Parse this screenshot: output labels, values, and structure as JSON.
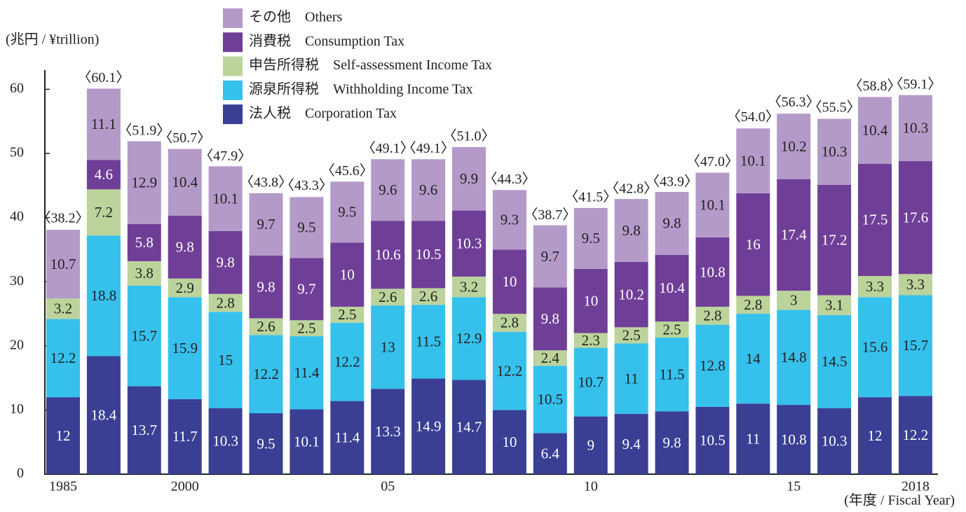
{
  "chart_data": {
    "type": "stacked-bar",
    "y_label": "(兆円 / ¥trillion)",
    "x_label": "(年度 / Fiscal Year)",
    "categories": [
      "1985",
      null,
      null,
      "2000",
      null,
      null,
      null,
      null,
      "05",
      null,
      null,
      null,
      null,
      "10",
      null,
      null,
      null,
      null,
      "15",
      null,
      null,
      "2018"
    ],
    "series": [
      {
        "name": "法人税　Corporation Tax",
        "color": "#3a3f94",
        "values": [
          12.0,
          18.4,
          13.7,
          11.7,
          10.3,
          9.5,
          10.1,
          11.4,
          13.3,
          14.9,
          14.7,
          10.0,
          6.4,
          9.0,
          9.4,
          9.8,
          10.5,
          11.0,
          10.8,
          10.3,
          12.0,
          12.2
        ]
      },
      {
        "name": "源泉所得税　Withholding Income Tax",
        "color": "#36c0ec",
        "values": [
          12.2,
          18.8,
          15.7,
          15.9,
          15.0,
          12.2,
          11.4,
          12.2,
          13.0,
          11.5,
          12.9,
          12.2,
          10.5,
          10.7,
          11.0,
          11.5,
          12.8,
          14.0,
          14.8,
          14.5,
          15.6,
          15.7
        ]
      },
      {
        "name": "申告所得税　Self-assessment Income Tax",
        "color": "#bcd39b",
        "values": [
          3.2,
          7.2,
          3.8,
          2.9,
          2.8,
          2.6,
          2.5,
          2.5,
          2.6,
          2.6,
          3.2,
          2.8,
          2.4,
          2.3,
          2.5,
          2.5,
          2.8,
          2.8,
          3.0,
          3.1,
          3.3,
          3.3
        ]
      },
      {
        "name": "消費税　Consumption Tax",
        "color": "#6f3f98",
        "values": [
          null,
          4.6,
          5.8,
          9.8,
          9.8,
          9.8,
          9.7,
          10.0,
          10.6,
          10.5,
          10.3,
          10.0,
          9.8,
          10.0,
          10.2,
          10.4,
          10.8,
          16.0,
          17.4,
          17.2,
          17.5,
          17.6
        ]
      },
      {
        "name": "その他　Others",
        "color": "#b49ac9",
        "values": [
          10.7,
          11.1,
          12.9,
          10.4,
          10.1,
          9.7,
          9.5,
          9.5,
          9.6,
          9.6,
          9.9,
          9.3,
          9.7,
          9.5,
          9.8,
          9.8,
          10.1,
          10.1,
          10.2,
          10.3,
          10.4,
          10.3
        ]
      }
    ],
    "totals": {
      "values": [
        38.2,
        60.1,
        51.9,
        50.7,
        47.9,
        43.8,
        43.3,
        45.6,
        49.1,
        49.1,
        51.0,
        44.3,
        38.7,
        41.5,
        42.8,
        43.9,
        47.0,
        54.0,
        56.3,
        55.5,
        58.8,
        59.1
      ],
      "value_labels": [
        "〈38.2〉",
        "〈60.1〉",
        "〈51.9〉",
        "〈50.7〉",
        "〈47.9〉",
        "〈43.8〉",
        "〈43.3〉",
        "〈45.6〉",
        "〈49.1〉",
        "〈49.1〉",
        "〈51.0〉",
        "〈44.3〉",
        "〈38.7〉",
        "〈41.5〉",
        "〈42.8〉",
        "〈43.9〉",
        "〈47.0〉",
        "〈54.0〉",
        "〈56.3〉",
        "〈55.5〉",
        "〈58.8〉",
        "〈59.1〉"
      ]
    },
    "ylim": [
      0,
      63
    ],
    "yticks": [
      0,
      10,
      20,
      30,
      40,
      50,
      60
    ]
  }
}
